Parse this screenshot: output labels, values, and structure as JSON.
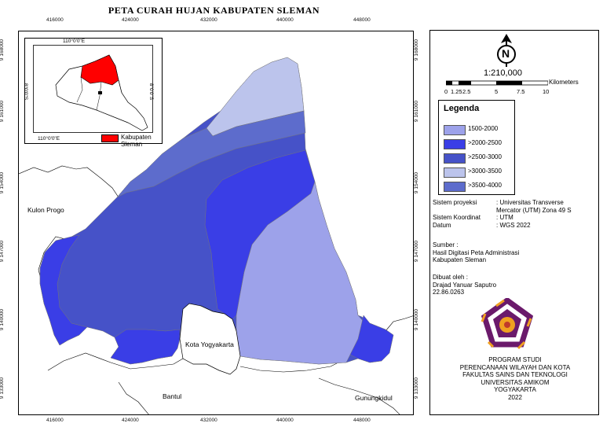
{
  "title": "PETA  CURAH HUJAN KABUPATEN SLEMAN",
  "grid_x_labels": [
    "416000",
    "424000",
    "432000",
    "440000",
    "448000"
  ],
  "grid_y_labels": [
    "9 168000",
    "9 161000",
    "9 154000",
    "9 147000",
    "9 140000",
    "9 133000"
  ],
  "regions": {
    "kulon_progo": "Kulon Progo",
    "kota_yogyakarta": "Kota Yogyakarta",
    "bantul": "Bantul",
    "gunungkidul": "Gunungkidul"
  },
  "inset": {
    "top_lon": "110°0'0\"E",
    "bottom_lon": "110°0'0\"E",
    "left_lat": "8°0'0\"S",
    "right_lat": "8°0'0\"S",
    "legend_label": "Kabupaten Sleman",
    "highlight_color": "#ff0000"
  },
  "north_arrow": {
    "letter": "N"
  },
  "scale": {
    "ratio": "1:210,000",
    "unit": "Kilometers",
    "ticks": [
      "0",
      "1.25",
      "2.5",
      "5",
      "7.5",
      "10"
    ]
  },
  "legend": {
    "title": "Legenda",
    "items": [
      {
        "label": "1500-2000",
        "color": "#9da2ea"
      },
      {
        "label": ">2000-2500",
        "color": "#3a3ee6"
      },
      {
        "label": ">2500-3000",
        "color": "#4652c8"
      },
      {
        "label": ">3000-3500",
        "color": "#bcc4ec"
      },
      {
        "label": ">3500-4000",
        "color": "#5d6ccc"
      }
    ]
  },
  "projection": {
    "system_label": "Sistem proyeksi",
    "system_value_1": ": Universitas Transverse",
    "system_value_2": "Mercator (UTM) Zona 49 S",
    "coord_label": "Sistem Koordinat",
    "coord_value": ": UTM",
    "datum_label": "Datum",
    "datum_value": ": WGS 2022"
  },
  "source": {
    "label": "Sumber :",
    "line1": "Hasil Digitasi Peta Administrasi",
    "line2": "Kabupaten Sleman"
  },
  "author": {
    "label": "Dibuat oleh :",
    "name": "Drajad Yanuar Saputro",
    "id": "22.86.0263"
  },
  "program": {
    "line1": "PROGRAM STUDI",
    "line2": "PERENCANAAN WILAYAH DAN KOTA",
    "line3": "FAKULTAS SAINS DAN TEKNOLOGI",
    "line4": "UNIVERSITAS AMIKOM",
    "line5": "YOGYAKARTA",
    "line6": "2022"
  }
}
